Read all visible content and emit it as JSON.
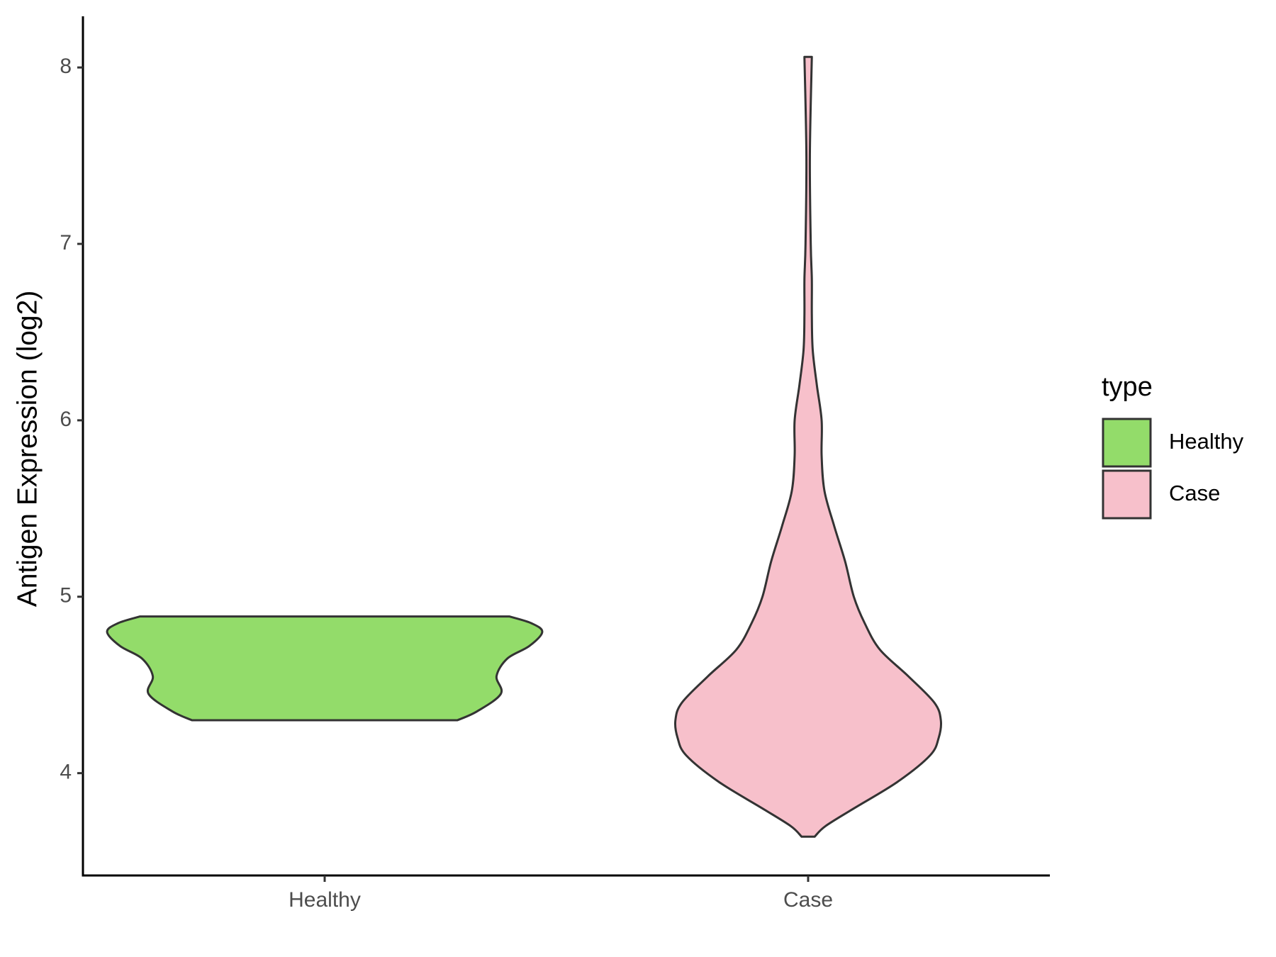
{
  "chart_data": {
    "type": "violin",
    "y_label": "Antigen Expression (log2)",
    "categories": [
      "Healthy",
      "Case"
    ],
    "ylim": [
      3.42,
      8.29
    ],
    "yticks": [
      4,
      5,
      6,
      7,
      8
    ],
    "legend_title": "type",
    "legend_position": "right",
    "series": [
      {
        "name": "Healthy",
        "color": "#93dc6a",
        "y": [
          4.3,
          4.35,
          4.45,
          4.55,
          4.65,
          4.72,
          4.8,
          4.85,
          4.888
        ],
        "width": [
          0.61,
          0.7,
          0.81,
          0.79,
          0.84,
          0.94,
          1.0,
          0.95,
          0.85
        ]
      },
      {
        "name": "Case",
        "color": "#f7c0cb",
        "y": [
          3.64,
          3.7,
          3.8,
          3.95,
          4.1,
          4.2,
          4.3,
          4.4,
          4.55,
          4.7,
          4.85,
          5.0,
          5.2,
          5.4,
          5.6,
          5.8,
          6.0,
          6.2,
          6.4,
          6.6,
          6.8,
          7.0,
          7.5,
          8.06
        ],
        "width": [
          0.03,
          0.08,
          0.21,
          0.41,
          0.56,
          0.6,
          0.61,
          0.58,
          0.46,
          0.33,
          0.26,
          0.21,
          0.17,
          0.12,
          0.075,
          0.062,
          0.062,
          0.04,
          0.021,
          0.017,
          0.017,
          0.012,
          0.008,
          0.017
        ]
      }
    ]
  }
}
